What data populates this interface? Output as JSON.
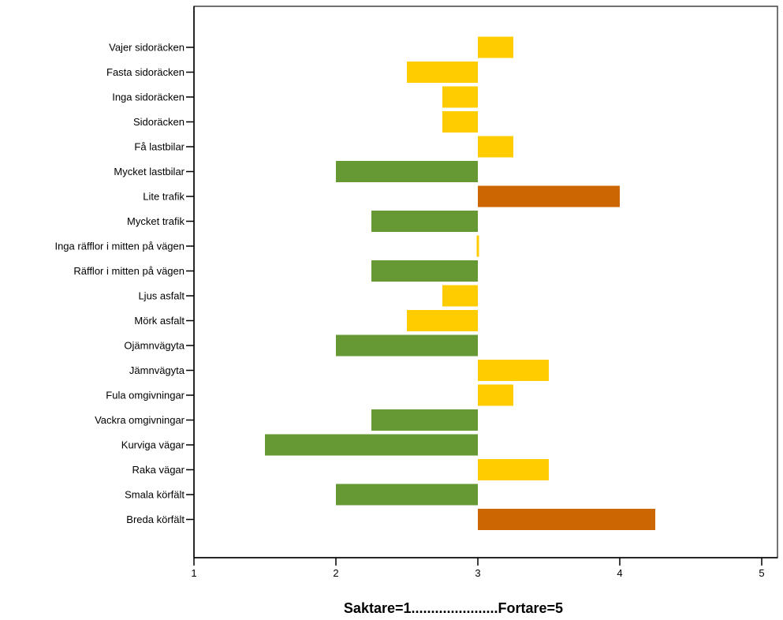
{
  "chart_data": {
    "type": "bar",
    "orientation": "horizontal",
    "baseline": 3,
    "xlim": [
      1,
      5
    ],
    "x_ticks": [
      1,
      2,
      3,
      4,
      5
    ],
    "xlabel": "Saktare=1......................Fortare=5",
    "ylabel": "",
    "title": "",
    "grid": false,
    "legend": "none",
    "colors": {
      "yellow": "#ffcc00",
      "green": "#669933",
      "orange": "#cc6600",
      "axis": "#000000",
      "frame": "#444444"
    },
    "categories": [
      "Vajer sidoräcken",
      "Fasta sidoräcken",
      "Inga sidoräcken",
      "Sidoräcken",
      "Få lastbilar",
      "Mycket lastbilar",
      "Lite trafik",
      "Mycket trafik",
      "Inga räfflor i mitten på vägen",
      "Räfflor i mitten på vägen",
      "Ljus asfalt",
      "Mörk asfalt",
      "Ojämnvägyta",
      "Jämnvägyta",
      "Fula omgivningar",
      "Vackra omgivningar",
      "Kurviga vägar",
      "Raka vägar",
      "Smala körfält",
      "Breda körfält"
    ],
    "values": [
      3.25,
      2.5,
      2.75,
      2.75,
      3.25,
      2.0,
      4.0,
      2.25,
      3.0,
      2.25,
      2.75,
      2.5,
      2.0,
      3.5,
      3.25,
      2.25,
      1.5,
      3.5,
      2.0,
      4.25
    ],
    "bar_colors": [
      "yellow",
      "yellow",
      "yellow",
      "yellow",
      "yellow",
      "green",
      "orange",
      "green",
      "yellow",
      "green",
      "yellow",
      "yellow",
      "green",
      "yellow",
      "yellow",
      "green",
      "green",
      "yellow",
      "green",
      "orange"
    ]
  }
}
